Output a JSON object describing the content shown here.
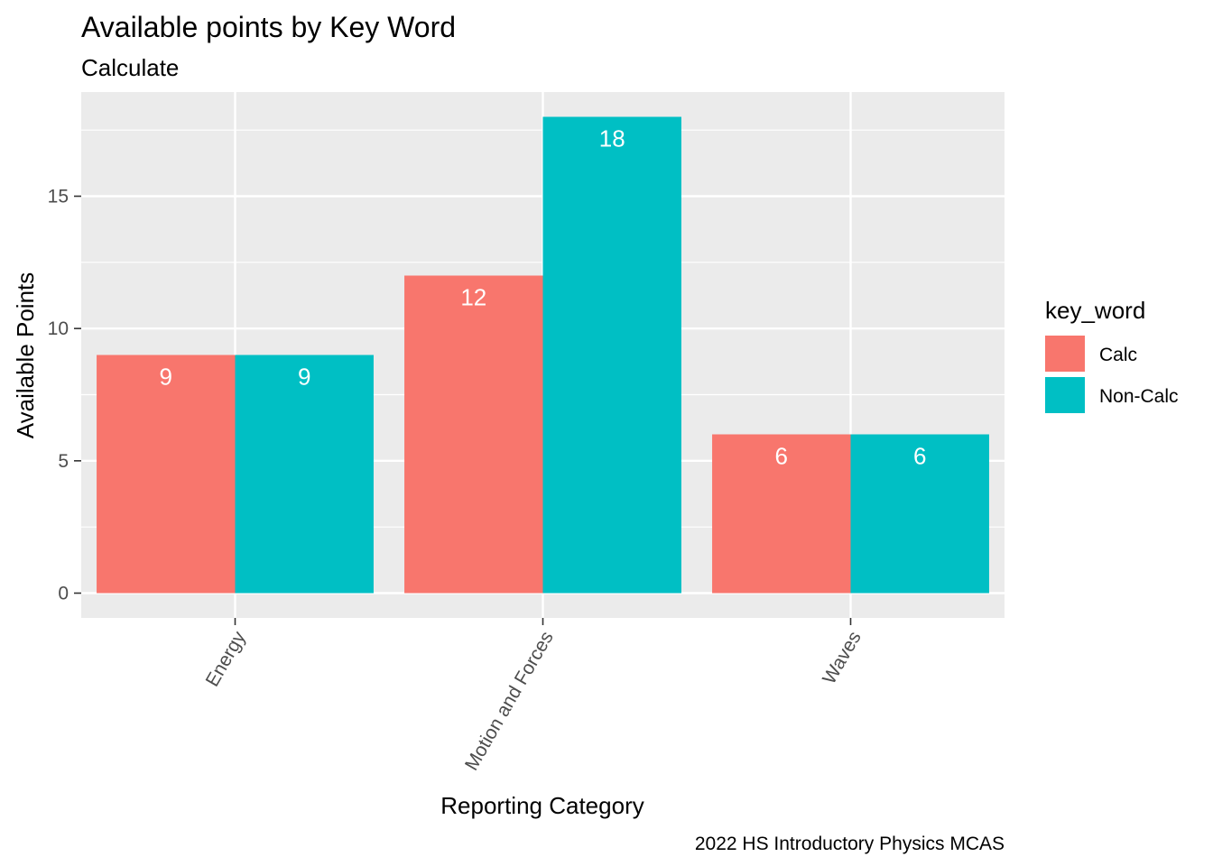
{
  "chart_data": {
    "type": "bar",
    "title": "Available points by Key Word",
    "subtitle": "Calculate",
    "xlabel": "Reporting Category",
    "ylabel": "Available Points",
    "caption": "2022 HS Introductory Physics MCAS",
    "categories": [
      "Energy",
      "Motion and Forces",
      "Waves"
    ],
    "series": [
      {
        "name": "Calc",
        "values": [
          9,
          12,
          6
        ],
        "color": "#F8766D"
      },
      {
        "name": "Non-Calc",
        "values": [
          9,
          18,
          6
        ],
        "color": "#00BFC4"
      }
    ],
    "ylim": [
      -0.9375,
      18.9375
    ],
    "yticks": [
      0,
      5,
      10,
      15
    ],
    "ytick_labels": [
      "0",
      "5",
      "10",
      "15"
    ],
    "legend": {
      "title": "key_word",
      "position": "right"
    },
    "grid": true,
    "panel_background": "#EBEBEB",
    "grid_color": "#FFFFFF"
  }
}
